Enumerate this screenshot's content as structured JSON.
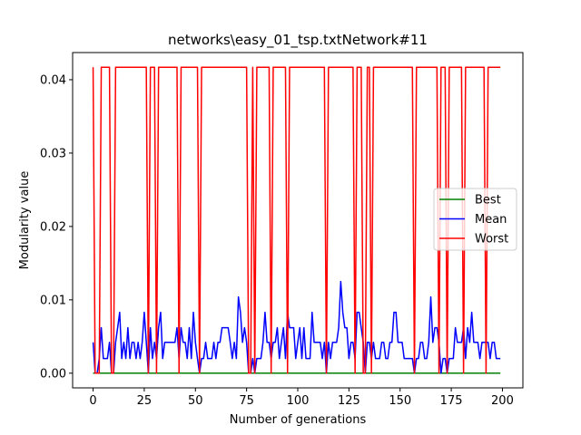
{
  "chart_data": {
    "type": "line",
    "title": "networks\\easy_01_tsp.txtNetwork#11",
    "xlabel": "Number of generations",
    "ylabel": "Modularity value",
    "xlim": [
      -10,
      210
    ],
    "ylim": [
      -0.002,
      0.0437
    ],
    "xticks": [
      0,
      25,
      50,
      75,
      100,
      125,
      150,
      175,
      200
    ],
    "yticks": [
      0.0,
      0.01,
      0.02,
      0.03,
      0.04
    ],
    "ytick_labels": [
      "0.00",
      "0.01",
      "0.02",
      "0.03",
      "0.04"
    ],
    "legend": {
      "position": "center-right"
    },
    "grid": false,
    "series": [
      {
        "name": "Best",
        "color": "#008000",
        "points": [
          [
            0,
            0.0
          ],
          [
            199,
            0.0
          ]
        ]
      },
      {
        "name": "Mean",
        "color": "#0000ff",
        "points": [
          [
            0,
            0.0042
          ],
          [
            1,
            0.0
          ],
          [
            2,
            0.0
          ],
          [
            3,
            0.002
          ],
          [
            4,
            0.0062
          ],
          [
            5,
            0.002
          ],
          [
            6,
            0.002
          ],
          [
            7,
            0.002
          ],
          [
            8,
            0.0042
          ],
          [
            9,
            0.0
          ],
          [
            10,
            0.0
          ],
          [
            11,
            0.0042
          ],
          [
            12,
            0.0062
          ],
          [
            13,
            0.0083
          ],
          [
            14,
            0.002
          ],
          [
            15,
            0.0042
          ],
          [
            16,
            0.002
          ],
          [
            17,
            0.0062
          ],
          [
            18,
            0.002
          ],
          [
            19,
            0.0042
          ],
          [
            20,
            0.0042
          ],
          [
            21,
            0.002
          ],
          [
            22,
            0.0042
          ],
          [
            23,
            0.002
          ],
          [
            24,
            0.0042
          ],
          [
            25,
            0.0083
          ],
          [
            26,
            0.0042
          ],
          [
            27,
            0.0
          ],
          [
            28,
            0.0062
          ],
          [
            29,
            0.002
          ],
          [
            30,
            0.0042
          ],
          [
            31,
            0.002
          ],
          [
            32,
            0.0062
          ],
          [
            33,
            0.0083
          ],
          [
            34,
            0.002
          ],
          [
            35,
            0.0042
          ],
          [
            36,
            0.0042
          ],
          [
            37,
            0.0042
          ],
          [
            38,
            0.0042
          ],
          [
            39,
            0.0042
          ],
          [
            40,
            0.0042
          ],
          [
            41,
            0.0062
          ],
          [
            42,
            0.002
          ],
          [
            43,
            0.0062
          ],
          [
            44,
            0.0042
          ],
          [
            45,
            0.0042
          ],
          [
            46,
            0.002
          ],
          [
            47,
            0.0062
          ],
          [
            48,
            0.002
          ],
          [
            49,
            0.0083
          ],
          [
            50,
            0.0042
          ],
          [
            51,
            0.002
          ],
          [
            52,
            0.0
          ],
          [
            53,
            0.002
          ],
          [
            54,
            0.002
          ],
          [
            55,
            0.0042
          ],
          [
            56,
            0.002
          ],
          [
            57,
            0.002
          ],
          [
            58,
            0.002
          ],
          [
            59,
            0.0042
          ],
          [
            60,
            0.002
          ],
          [
            61,
            0.0042
          ],
          [
            62,
            0.0042
          ],
          [
            63,
            0.0062
          ],
          [
            64,
            0.0062
          ],
          [
            65,
            0.0062
          ],
          [
            66,
            0.0062
          ],
          [
            67,
            0.0042
          ],
          [
            68,
            0.002
          ],
          [
            69,
            0.0042
          ],
          [
            70,
            0.002
          ],
          [
            71,
            0.0104
          ],
          [
            72,
            0.0083
          ],
          [
            73,
            0.0042
          ],
          [
            74,
            0.0062
          ],
          [
            75,
            0.0042
          ],
          [
            76,
            0.0
          ],
          [
            77,
            0.0
          ],
          [
            78,
            0.002
          ],
          [
            79,
            0.0
          ],
          [
            80,
            0.002
          ],
          [
            81,
            0.002
          ],
          [
            82,
            0.002
          ],
          [
            83,
            0.0042
          ],
          [
            84,
            0.0083
          ],
          [
            85,
            0.0042
          ],
          [
            86,
            0.0042
          ],
          [
            87,
            0.002
          ],
          [
            88,
            0.0042
          ],
          [
            89,
            0.0042
          ],
          [
            90,
            0.0062
          ],
          [
            91,
            0.002
          ],
          [
            92,
            0.0042
          ],
          [
            93,
            0.0062
          ],
          [
            94,
            0.002
          ],
          [
            95,
            0.0083
          ],
          [
            96,
            0.0062
          ],
          [
            97,
            0.0062
          ],
          [
            98,
            0.0062
          ],
          [
            99,
            0.002
          ],
          [
            100,
            0.0042
          ],
          [
            101,
            0.0062
          ],
          [
            102,
            0.002
          ],
          [
            103,
            0.0062
          ],
          [
            104,
            0.002
          ],
          [
            105,
            0.002
          ],
          [
            106,
            0.002
          ],
          [
            107,
            0.0083
          ],
          [
            108,
            0.0042
          ],
          [
            109,
            0.0042
          ],
          [
            110,
            0.0042
          ],
          [
            111,
            0.0042
          ],
          [
            112,
            0.002
          ],
          [
            113,
            0.0042
          ],
          [
            114,
            0.0
          ],
          [
            115,
            0.0042
          ],
          [
            116,
            0.002
          ],
          [
            117,
            0.0042
          ],
          [
            118,
            0.0042
          ],
          [
            119,
            0.0042
          ],
          [
            120,
            0.0062
          ],
          [
            121,
            0.0125
          ],
          [
            122,
            0.0083
          ],
          [
            123,
            0.0062
          ],
          [
            124,
            0.0062
          ],
          [
            125,
            0.002
          ],
          [
            126,
            0.0042
          ],
          [
            127,
            0.0042
          ],
          [
            128,
            0.002
          ],
          [
            129,
            0.0083
          ],
          [
            130,
            0.0083
          ],
          [
            131,
            0.0062
          ],
          [
            132,
            0.0042
          ],
          [
            133,
            0.0
          ],
          [
            134,
            0.0042
          ],
          [
            135,
            0.0042
          ],
          [
            136,
            0.002
          ],
          [
            137,
            0.0042
          ],
          [
            138,
            0.002
          ],
          [
            139,
            0.002
          ],
          [
            140,
            0.002
          ],
          [
            141,
            0.0042
          ],
          [
            142,
            0.0042
          ],
          [
            143,
            0.002
          ],
          [
            144,
            0.002
          ],
          [
            145,
            0.0042
          ],
          [
            146,
            0.0042
          ],
          [
            147,
            0.0083
          ],
          [
            148,
            0.0083
          ],
          [
            149,
            0.0042
          ],
          [
            150,
            0.0042
          ],
          [
            151,
            0.0042
          ],
          [
            152,
            0.002
          ],
          [
            153,
            0.002
          ],
          [
            154,
            0.002
          ],
          [
            155,
            0.002
          ],
          [
            156,
            0.002
          ],
          [
            157,
            0.0
          ],
          [
            158,
            0.002
          ],
          [
            159,
            0.002
          ],
          [
            160,
            0.0042
          ],
          [
            161,
            0.0042
          ],
          [
            162,
            0.002
          ],
          [
            163,
            0.002
          ],
          [
            164,
            0.0042
          ],
          [
            165,
            0.0104
          ],
          [
            166,
            0.0042
          ],
          [
            167,
            0.0062
          ],
          [
            168,
            0.0062
          ],
          [
            169,
            0.0042
          ],
          [
            170,
            0.0
          ],
          [
            171,
            0.002
          ],
          [
            172,
            0.002
          ],
          [
            173,
            0.0
          ],
          [
            174,
            0.002
          ],
          [
            175,
            0.002
          ],
          [
            176,
            0.002
          ],
          [
            177,
            0.0062
          ],
          [
            178,
            0.0042
          ],
          [
            179,
            0.0042
          ],
          [
            180,
            0.0042
          ],
          [
            181,
            0.0062
          ],
          [
            182,
            0.002
          ],
          [
            183,
            0.0062
          ],
          [
            184,
            0.0042
          ],
          [
            185,
            0.0083
          ],
          [
            186,
            0.0042
          ],
          [
            187,
            0.0042
          ],
          [
            188,
            0.0042
          ],
          [
            189,
            0.002
          ],
          [
            190,
            0.0042
          ],
          [
            191,
            0.0042
          ],
          [
            192,
            0.0042
          ],
          [
            193,
            0.0042
          ],
          [
            194,
            0.002
          ],
          [
            195,
            0.0042
          ],
          [
            196,
            0.0042
          ],
          [
            197,
            0.002
          ],
          [
            198,
            0.002
          ],
          [
            199,
            0.002
          ]
        ]
      },
      {
        "name": "Worst",
        "color": "#ff0000",
        "points": [
          [
            0,
            0.0417
          ],
          [
            1,
            0.0
          ],
          [
            2,
            0.0
          ],
          [
            3,
            0.0
          ],
          [
            4,
            0.0417
          ],
          [
            5,
            0.0417
          ],
          [
            6,
            0.0417
          ],
          [
            7,
            0.0417
          ],
          [
            8,
            0.0417
          ],
          [
            9,
            0.0
          ],
          [
            10,
            0.0
          ],
          [
            11,
            0.0417
          ],
          [
            26,
            0.0417
          ],
          [
            27,
            0.0
          ],
          [
            28,
            0.0417
          ],
          [
            29,
            0.0417
          ],
          [
            30,
            0.0417
          ],
          [
            31,
            0.0
          ],
          [
            32,
            0.0417
          ],
          [
            41,
            0.0417
          ],
          [
            42,
            0.0
          ],
          [
            43,
            0.0417
          ],
          [
            51,
            0.0417
          ],
          [
            52,
            0.0
          ],
          [
            53,
            0.0417
          ],
          [
            75,
            0.0417
          ],
          [
            76,
            0.0
          ],
          [
            77,
            0.0
          ],
          [
            78,
            0.0417
          ],
          [
            79,
            0.0
          ],
          [
            80,
            0.0417
          ],
          [
            86,
            0.0417
          ],
          [
            87,
            0.0
          ],
          [
            88,
            0.0417
          ],
          [
            94,
            0.0417
          ],
          [
            95,
            0.0
          ],
          [
            96,
            0.0417
          ],
          [
            113,
            0.0417
          ],
          [
            114,
            0.0
          ],
          [
            115,
            0.0417
          ],
          [
            127,
            0.0417
          ],
          [
            128,
            0.0
          ],
          [
            129,
            0.0417
          ],
          [
            130,
            0.0417
          ],
          [
            131,
            0.0417
          ],
          [
            132,
            0.0
          ],
          [
            133,
            0.0
          ],
          [
            134,
            0.0417
          ],
          [
            135,
            0.0417
          ],
          [
            136,
            0.0
          ],
          [
            137,
            0.0417
          ],
          [
            156,
            0.0417
          ],
          [
            157,
            0.0
          ],
          [
            158,
            0.0417
          ],
          [
            168,
            0.0417
          ],
          [
            169,
            0.0
          ],
          [
            170,
            0.0417
          ],
          [
            172,
            0.0417
          ],
          [
            173,
            0.0
          ],
          [
            174,
            0.0417
          ],
          [
            180,
            0.0417
          ],
          [
            181,
            0.0
          ],
          [
            182,
            0.0417
          ],
          [
            191,
            0.0417
          ],
          [
            192,
            0.0
          ],
          [
            193,
            0.0417
          ],
          [
            199,
            0.0417
          ]
        ]
      }
    ]
  }
}
